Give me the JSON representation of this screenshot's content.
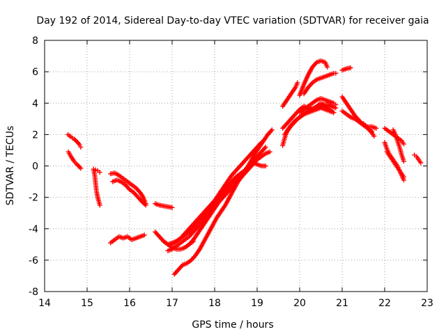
{
  "chart_data": {
    "type": "scatter",
    "title": "Day 192 of 2014, Sidereal Day-to-day VTEC variation (SDTVAR) for receiver gaia",
    "xlabel": "GPS time / hours",
    "ylabel": "SDTVAR / TECUs",
    "xlim": [
      14,
      23
    ],
    "ylim": [
      -8,
      8
    ],
    "xticks": [
      "14",
      "15",
      "16",
      "17",
      "18",
      "19",
      "20",
      "21",
      "22",
      "23"
    ],
    "yticks": [
      "-8",
      "-6",
      "-4",
      "-2",
      "0",
      "2",
      "4",
      "6",
      "8"
    ],
    "grid": true,
    "marker": "plus",
    "color": "#ff0000",
    "series": [
      {
        "name": "s1",
        "x": [
          14.55,
          14.62,
          14.7,
          14.78,
          14.82,
          14.85
        ],
        "y": [
          2.0,
          1.85,
          1.7,
          1.5,
          1.35,
          1.2
        ]
      },
      {
        "name": "s2",
        "x": [
          14.56,
          14.62,
          14.68,
          14.74,
          14.8,
          14.85
        ],
        "y": [
          0.9,
          0.6,
          0.35,
          0.15,
          0.0,
          -0.15
        ]
      },
      {
        "name": "s3",
        "x": [
          15.15,
          15.18,
          15.2,
          15.22,
          15.25,
          15.28,
          15.3
        ],
        "y": [
          -0.2,
          -0.6,
          -1.1,
          -1.6,
          -2.0,
          -2.3,
          -2.5
        ]
      },
      {
        "name": "s4",
        "x": [
          15.2,
          15.25,
          15.3
        ],
        "y": [
          -0.25,
          -0.3,
          -0.4
        ]
      },
      {
        "name": "s5",
        "x": [
          15.55,
          15.65,
          15.75,
          15.85,
          15.95,
          16.05,
          16.15,
          16.25,
          16.32,
          16.38
        ],
        "y": [
          -0.5,
          -0.45,
          -0.6,
          -0.8,
          -1.0,
          -1.2,
          -1.4,
          -1.7,
          -2.0,
          -2.4
        ]
      },
      {
        "name": "s6",
        "x": [
          15.6,
          15.7,
          15.8,
          15.9,
          16.0,
          16.1,
          16.2,
          16.3,
          16.38
        ],
        "y": [
          -1.0,
          -0.9,
          -1.0,
          -1.2,
          -1.5,
          -1.7,
          -2.0,
          -2.3,
          -2.5
        ]
      },
      {
        "name": "s7",
        "x": [
          15.55,
          15.65,
          15.75,
          15.85,
          15.95,
          16.05,
          16.15,
          16.25,
          16.35
        ],
        "y": [
          -4.9,
          -4.7,
          -4.5,
          -4.6,
          -4.5,
          -4.7,
          -4.6,
          -4.5,
          -4.4
        ]
      },
      {
        "name": "s8",
        "x": [
          16.6,
          16.7,
          16.8,
          16.9,
          17.0
        ],
        "y": [
          -2.4,
          -2.5,
          -2.55,
          -2.6,
          -2.65
        ]
      },
      {
        "name": "s9",
        "x": [
          16.6,
          16.7,
          16.8,
          16.9,
          17.0,
          17.1,
          17.2,
          17.3,
          17.4,
          17.5
        ],
        "y": [
          -4.2,
          -4.5,
          -4.8,
          -5.0,
          -5.2,
          -5.3,
          -5.3,
          -5.2,
          -5.0,
          -4.8
        ]
      },
      {
        "name": "s10",
        "x": [
          16.9,
          17.0,
          17.1,
          17.2,
          17.3,
          17.4,
          17.5,
          17.6,
          17.7,
          17.8,
          17.9,
          18.0,
          18.1,
          18.2,
          18.3,
          18.4,
          18.5,
          18.6,
          18.7,
          18.8,
          18.9,
          19.0,
          19.1,
          19.2
        ],
        "y": [
          -5.4,
          -5.3,
          -5.1,
          -4.9,
          -4.7,
          -4.5,
          -4.2,
          -3.9,
          -3.6,
          -3.2,
          -2.8,
          -2.4,
          -2.0,
          -1.7,
          -1.4,
          -1.1,
          -0.8,
          -0.5,
          -0.3,
          0.0,
          0.3,
          0.6,
          0.9,
          1.2
        ]
      },
      {
        "name": "s11",
        "x": [
          16.8,
          16.9,
          17.0,
          17.1,
          17.2,
          17.3,
          17.4,
          17.5,
          17.6,
          17.7,
          17.8,
          17.9,
          18.0,
          18.1,
          18.2,
          18.3,
          18.4,
          18.5,
          18.6,
          18.7,
          18.8,
          18.9,
          19.0,
          19.1
        ],
        "y": [
          -4.8,
          -5.0,
          -4.9,
          -4.8,
          -4.6,
          -4.4,
          -4.2,
          -3.9,
          -3.6,
          -3.3,
          -3.0,
          -2.6,
          -2.2,
          -1.8,
          -1.4,
          -1.0,
          -0.6,
          -0.3,
          0.0,
          0.3,
          0.6,
          0.9,
          1.2,
          1.5
        ]
      },
      {
        "name": "s12",
        "x": [
          17.0,
          17.1,
          17.2,
          17.3,
          17.4,
          17.5,
          17.6,
          17.7,
          17.8,
          17.9,
          18.0,
          18.1,
          18.2,
          18.3,
          18.4,
          18.5,
          18.6,
          18.7,
          18.8,
          18.9,
          19.0,
          19.1,
          19.2
        ],
        "y": [
          -5.0,
          -4.8,
          -4.6,
          -4.3,
          -4.0,
          -3.7,
          -3.4,
          -3.1,
          -2.8,
          -2.5,
          -2.2,
          -1.9,
          -1.6,
          -1.3,
          -1.0,
          -0.7,
          -0.5,
          -0.3,
          0.0,
          0.2,
          0.1,
          0.0,
          0.0
        ]
      },
      {
        "name": "s13",
        "x": [
          17.05,
          17.15,
          17.25,
          17.35,
          17.45,
          17.55,
          17.65,
          17.75,
          17.85,
          17.95,
          18.05,
          18.15,
          18.25,
          18.35,
          18.45,
          18.55,
          18.65,
          18.75,
          18.85,
          18.95,
          19.05,
          19.15,
          19.25,
          19.35
        ],
        "y": [
          -6.9,
          -6.6,
          -6.3,
          -6.2,
          -6.0,
          -5.7,
          -5.3,
          -4.8,
          -4.3,
          -3.8,
          -3.3,
          -2.9,
          -2.5,
          -2.0,
          -1.5,
          -1.0,
          -0.6,
          -0.2,
          0.3,
          0.8,
          1.2,
          1.6,
          2.0,
          2.3
        ]
      },
      {
        "name": "s14",
        "x": [
          17.3,
          17.4,
          17.5,
          17.6,
          17.7,
          17.8,
          17.9,
          18.0,
          18.1,
          18.2,
          18.3,
          18.4,
          18.5,
          18.6,
          18.7,
          18.8,
          18.9,
          19.0,
          19.1,
          19.2,
          19.3
        ],
        "y": [
          -5.2,
          -5.0,
          -4.7,
          -4.3,
          -3.9,
          -3.5,
          -3.1,
          -2.7,
          -2.3,
          -2.0,
          -1.7,
          -1.4,
          -1.1,
          -0.8,
          -0.5,
          -0.2,
          0.1,
          0.4,
          0.6,
          0.8,
          0.9
        ]
      },
      {
        "name": "s15",
        "x": [
          19.6,
          19.65,
          19.7,
          19.8,
          19.9,
          20.0,
          20.1,
          20.2,
          20.3,
          20.4,
          20.5,
          20.6,
          20.7,
          20.8
        ],
        "y": [
          1.3,
          1.8,
          2.2,
          2.6,
          2.9,
          3.1,
          3.3,
          3.4,
          3.5,
          3.6,
          3.7,
          3.6,
          3.5,
          3.4
        ]
      },
      {
        "name": "s16",
        "x": [
          19.6,
          19.7,
          19.8,
          19.9,
          20.0,
          20.1,
          20.2,
          20.3,
          20.4,
          20.5,
          20.6,
          20.7,
          20.8
        ],
        "y": [
          2.4,
          2.7,
          3.0,
          3.3,
          3.6,
          3.8,
          3.7,
          3.6,
          3.8,
          4.0,
          3.8,
          3.6,
          3.4
        ]
      },
      {
        "name": "s17",
        "x": [
          19.65,
          19.75,
          19.85,
          19.95,
          20.05,
          20.15,
          20.25,
          20.35,
          20.45,
          20.55,
          20.65,
          20.75,
          20.85
        ],
        "y": [
          2.0,
          2.4,
          2.7,
          3.0,
          3.2,
          3.4,
          3.6,
          3.7,
          3.8,
          3.9,
          3.9,
          3.8,
          3.7
        ]
      },
      {
        "name": "s18",
        "x": [
          20.0,
          20.1,
          20.2,
          20.3,
          20.4,
          20.5,
          20.6,
          20.7,
          20.8,
          20.85
        ],
        "y": [
          3.4,
          3.6,
          3.8,
          4.0,
          4.2,
          4.3,
          4.2,
          4.1,
          4.0,
          3.9
        ]
      },
      {
        "name": "s19",
        "x": [
          19.6,
          19.7,
          19.8,
          19.9,
          19.95
        ],
        "y": [
          3.8,
          4.2,
          4.6,
          5.0,
          5.3
        ]
      },
      {
        "name": "s20",
        "x": [
          20.0,
          20.1,
          20.2,
          20.3,
          20.4,
          20.5,
          20.6,
          20.65
        ],
        "y": [
          4.5,
          5.2,
          5.8,
          6.3,
          6.6,
          6.7,
          6.6,
          6.3
        ]
      },
      {
        "name": "s21",
        "x": [
          20.1,
          20.2,
          20.3,
          20.4,
          20.5,
          20.6,
          20.7,
          20.8,
          20.85
        ],
        "y": [
          4.6,
          5.0,
          5.3,
          5.5,
          5.6,
          5.7,
          5.8,
          5.9,
          5.9
        ]
      },
      {
        "name": "s22",
        "x": [
          21.0,
          21.1,
          21.2
        ],
        "y": [
          6.1,
          6.2,
          6.25
        ]
      },
      {
        "name": "s23",
        "x": [
          21.0,
          21.1,
          21.2,
          21.3,
          21.4,
          21.5,
          21.6,
          21.7,
          21.8
        ],
        "y": [
          4.4,
          4.0,
          3.6,
          3.2,
          2.9,
          2.6,
          2.5,
          2.5,
          2.4
        ]
      },
      {
        "name": "s24",
        "x": [
          21.0,
          21.1,
          21.2,
          21.3,
          21.4,
          21.5,
          21.6,
          21.7
        ],
        "y": [
          3.5,
          3.3,
          3.1,
          3.0,
          2.8,
          2.6,
          2.4,
          2.2
        ]
      },
      {
        "name": "s25",
        "x": [
          21.5,
          21.6,
          21.7,
          21.75
        ],
        "y": [
          2.7,
          2.4,
          2.1,
          1.9
        ]
      },
      {
        "name": "s26",
        "x": [
          22.0,
          22.1,
          22.2,
          22.3,
          22.4,
          22.45
        ],
        "y": [
          2.4,
          2.2,
          2.0,
          1.8,
          1.6,
          1.4
        ]
      },
      {
        "name": "s27",
        "x": [
          22.0,
          22.05,
          22.1,
          22.15,
          22.2,
          22.25,
          22.3,
          22.35,
          22.4,
          22.45
        ],
        "y": [
          1.5,
          1.1,
          0.8,
          0.6,
          0.4,
          0.2,
          0.0,
          -0.3,
          -0.6,
          -0.9
        ]
      },
      {
        "name": "s28",
        "x": [
          22.05,
          22.1,
          22.15,
          22.2,
          22.25,
          22.3,
          22.35,
          22.4,
          22.45
        ],
        "y": [
          0.9,
          0.7,
          0.5,
          0.3,
          0.1,
          -0.1,
          -0.3,
          -0.5,
          -0.7
        ]
      },
      {
        "name": "s29",
        "x": [
          22.2,
          22.25,
          22.3,
          22.35,
          22.4,
          22.45
        ],
        "y": [
          2.3,
          2.0,
          1.6,
          1.2,
          0.7,
          0.3
        ]
      },
      {
        "name": "s30",
        "x": [
          22.7,
          22.75,
          22.8,
          22.85
        ],
        "y": [
          0.7,
          0.6,
          0.4,
          0.2
        ]
      }
    ]
  }
}
